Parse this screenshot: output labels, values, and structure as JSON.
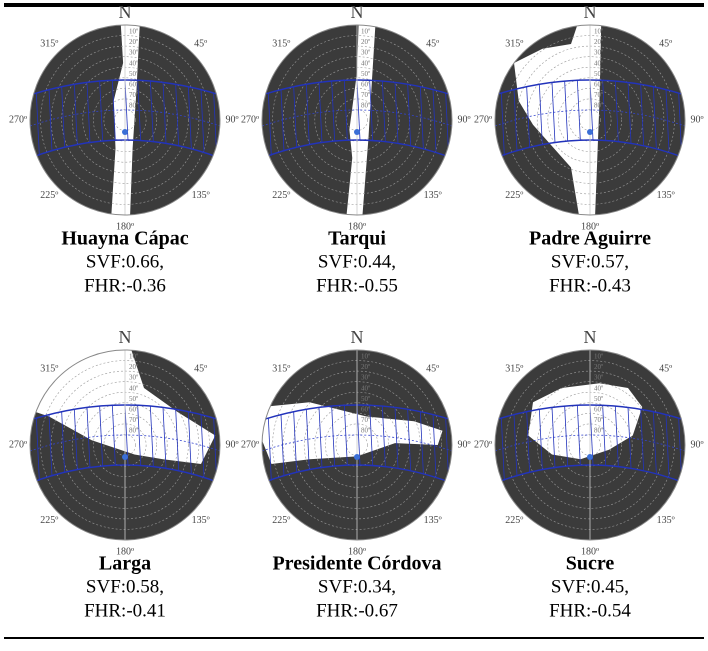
{
  "compass": {
    "north": "N",
    "ne": "45º",
    "east": "90º",
    "se": "135º",
    "south": "180º",
    "sw": "225º",
    "west": "270º",
    "nw": "315º"
  },
  "ring_labels": [
    "10º",
    "20º",
    "30º",
    "40º",
    "50º",
    "60º",
    "70º",
    "80º"
  ],
  "cells": [
    {
      "name": "Huayna Cápac",
      "svf": "SVF:0.66,",
      "fhr": "FHR:-0.36"
    },
    {
      "name": "Tarqui",
      "svf": "SVF:0.44,",
      "fhr": "FHR:-0.55"
    },
    {
      "name": "Padre Aguirre",
      "svf": "SVF:0.57,",
      "fhr": "FHR:-0.43"
    },
    {
      "name": "Larga",
      "svf": "SVF:0.58,",
      "fhr": "FHR:-0.41"
    },
    {
      "name": "Presidente Córdova",
      "svf": "SVF:0.34,",
      "fhr": "FHR:-0.67"
    },
    {
      "name": "Sucre",
      "svf": "SVF:0.45,",
      "fhr": "FHR:-0.54"
    }
  ]
}
